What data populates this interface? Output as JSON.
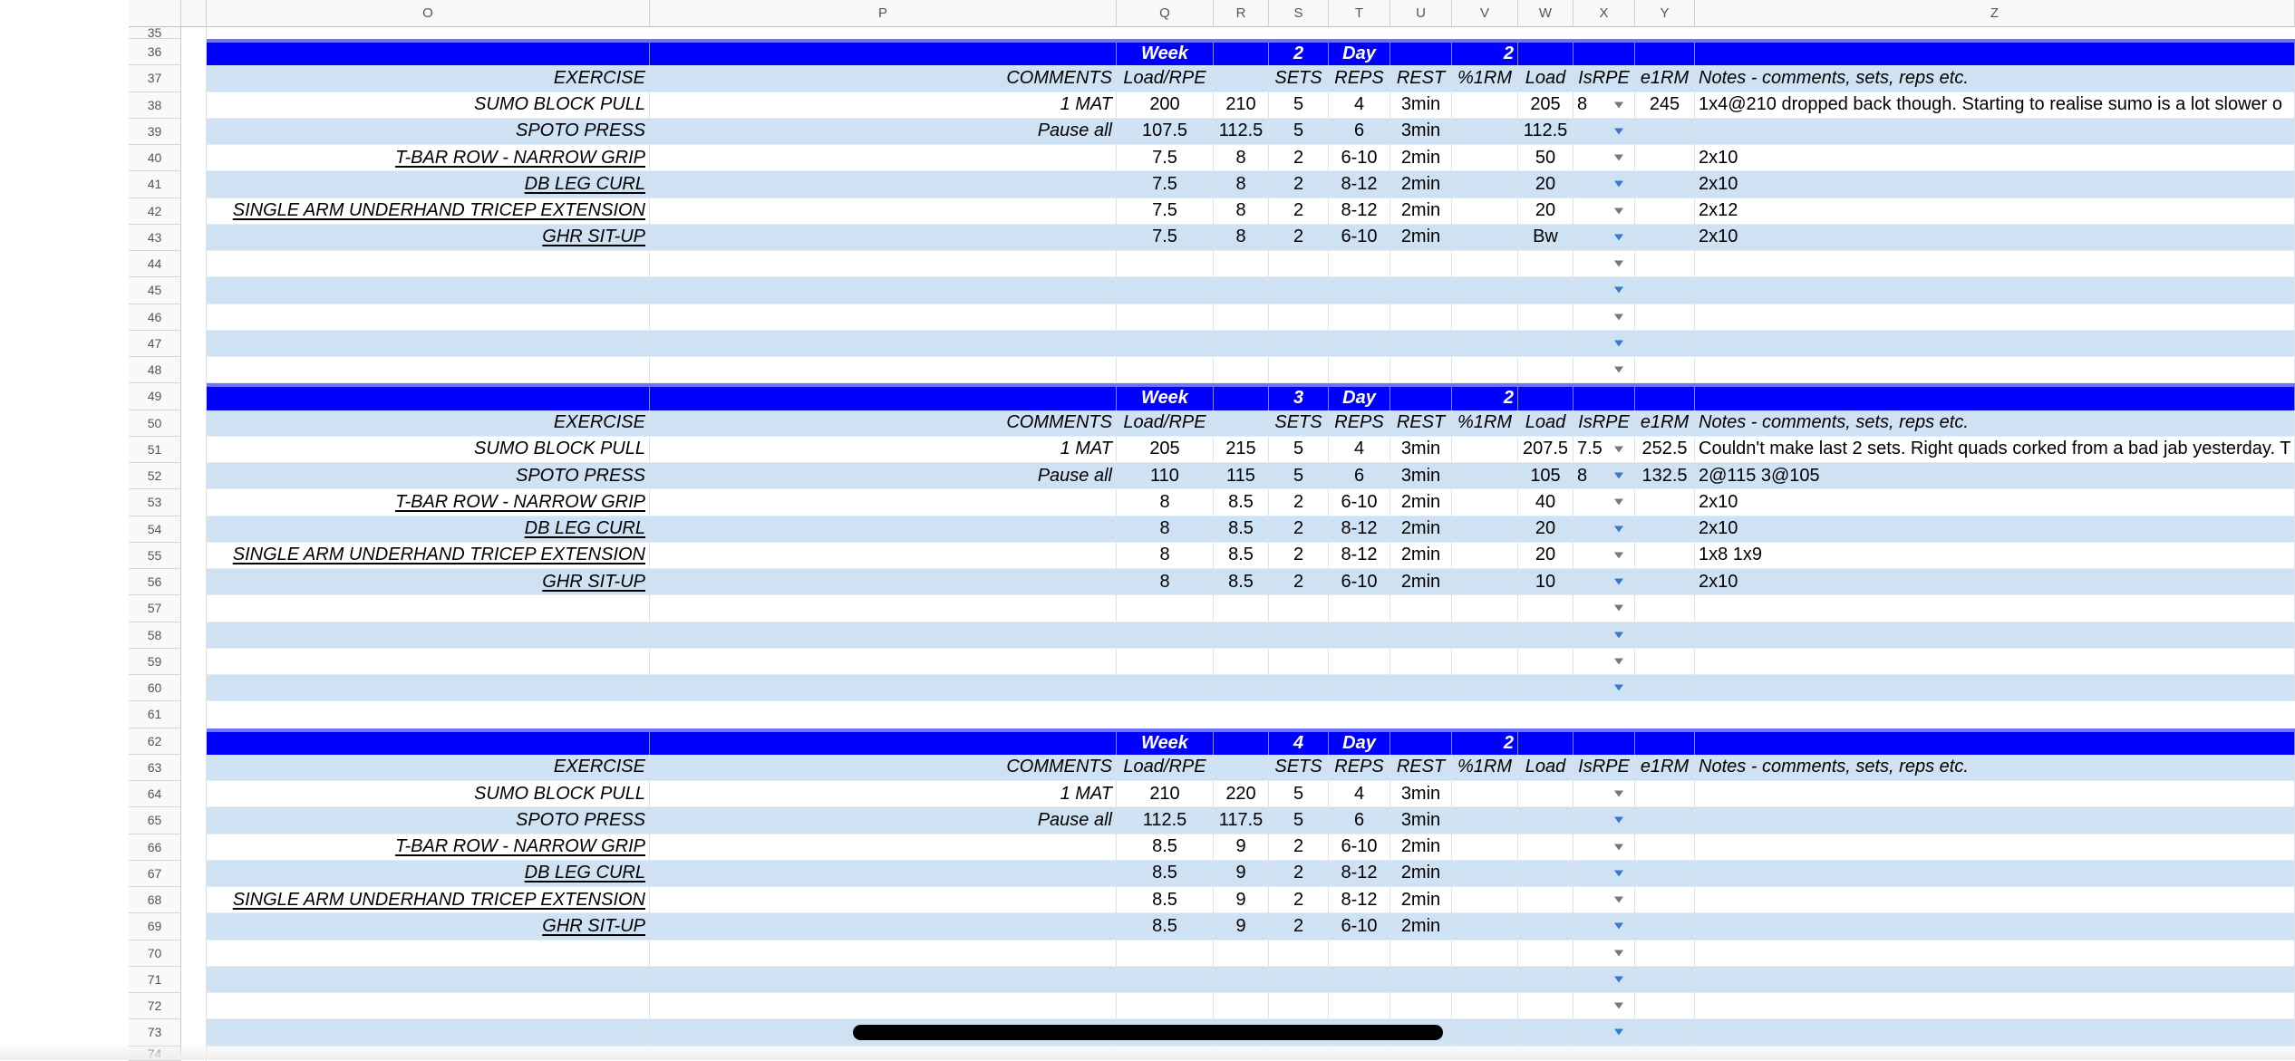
{
  "columns": [
    "O",
    "P",
    "Q",
    "R",
    "S",
    "T",
    "U",
    "V",
    "W",
    "X",
    "Y",
    "Z"
  ],
  "partial_rows": {
    "top": "35",
    "bottom": "74"
  },
  "labels": {
    "week": "Week",
    "day": "Day",
    "header": {
      "exercise": "EXERCISE",
      "comments": "COMMENTS",
      "load_rpe": "Load/RPE",
      "sets": "SETS",
      "reps": "REPS",
      "rest": "REST",
      "pct1rm": "%1RM",
      "load": "Load",
      "isrpe": "IsRPE",
      "e1rm": "e1RM",
      "notes": "Notes - comments, sets, reps etc."
    }
  },
  "colors": {
    "week_header": "#0000ff",
    "band": "#cfe2f3",
    "dropdown_band": "#3a78c9",
    "dropdown_plain": "#777777"
  },
  "blocks": [
    {
      "week_row": "36",
      "header_row": "37",
      "week": "2",
      "day": "2",
      "rows": [
        {
          "num": "38",
          "exercise": "SUMO BLOCK PULL",
          "link": false,
          "comments": "1 MAT",
          "q": "200",
          "r": "210",
          "sets": "5",
          "reps": "4",
          "rest": "3min",
          "pct": "",
          "load": "205",
          "isrpe": "8",
          "e1rm": "245",
          "notes": "1x4@210 dropped back though. Starting to realise sumo is a lot slower o"
        },
        {
          "num": "39",
          "exercise": "SPOTO PRESS",
          "link": false,
          "comments": "Pause all",
          "q": "107.5",
          "r": "112.5",
          "sets": "5",
          "reps": "6",
          "rest": "3min",
          "pct": "",
          "load": "112.5",
          "isrpe": "",
          "e1rm": "",
          "notes": ""
        },
        {
          "num": "40",
          "exercise": "T-BAR ROW - NARROW GRIP",
          "link": true,
          "comments": "",
          "q": "7.5",
          "r": "8",
          "sets": "2",
          "reps": "6-10",
          "rest": "2min",
          "pct": "",
          "load": "50",
          "isrpe": "",
          "e1rm": "",
          "notes": "2x10"
        },
        {
          "num": "41",
          "exercise": "DB LEG CURL",
          "link": true,
          "comments": "",
          "q": "7.5",
          "r": "8",
          "sets": "2",
          "reps": "8-12",
          "rest": "2min",
          "pct": "",
          "load": "20",
          "isrpe": "",
          "e1rm": "",
          "notes": "2x10"
        },
        {
          "num": "42",
          "exercise": "SINGLE ARM UNDERHAND TRICEP EXTENSION",
          "link": true,
          "comments": "",
          "q": "7.5",
          "r": "8",
          "sets": "2",
          "reps": "8-12",
          "rest": "2min",
          "pct": "",
          "load": "20",
          "isrpe": "",
          "e1rm": "",
          "notes": "2x12"
        },
        {
          "num": "43",
          "exercise": "GHR SIT-UP",
          "link": true,
          "comments": "",
          "q": "7.5",
          "r": "8",
          "sets": "2",
          "reps": "6-10",
          "rest": "2min",
          "pct": "",
          "load": "Bw",
          "isrpe": "",
          "e1rm": "",
          "notes": "2x10"
        }
      ],
      "empty_rows": [
        "44",
        "45",
        "46",
        "47",
        "48"
      ]
    },
    {
      "week_row": "49",
      "header_row": "50",
      "week": "3",
      "day": "2",
      "rows": [
        {
          "num": "51",
          "exercise": "SUMO BLOCK PULL",
          "link": false,
          "comments": "1 MAT",
          "q": "205",
          "r": "215",
          "sets": "5",
          "reps": "4",
          "rest": "3min",
          "pct": "",
          "load": "207.5",
          "isrpe": "7.5",
          "e1rm": "252.5",
          "notes": "Couldn't make last 2 sets. Right quads corked from a bad jab yesterday. T"
        },
        {
          "num": "52",
          "exercise": "SPOTO PRESS",
          "link": false,
          "comments": "Pause all",
          "q": "110",
          "r": "115",
          "sets": "5",
          "reps": "6",
          "rest": "3min",
          "pct": "",
          "load": "105",
          "isrpe": "8",
          "e1rm": "132.5",
          "notes": "2@115 3@105"
        },
        {
          "num": "53",
          "exercise": "T-BAR ROW - NARROW GRIP",
          "link": true,
          "comments": "",
          "q": "8",
          "r": "8.5",
          "sets": "2",
          "reps": "6-10",
          "rest": "2min",
          "pct": "",
          "load": "40",
          "isrpe": "",
          "e1rm": "",
          "notes": "2x10"
        },
        {
          "num": "54",
          "exercise": "DB LEG CURL",
          "link": true,
          "comments": "",
          "q": "8",
          "r": "8.5",
          "sets": "2",
          "reps": "8-12",
          "rest": "2min",
          "pct": "",
          "load": "20",
          "isrpe": "",
          "e1rm": "",
          "notes": "2x10"
        },
        {
          "num": "55",
          "exercise": "SINGLE ARM UNDERHAND TRICEP EXTENSION",
          "link": true,
          "comments": "",
          "q": "8",
          "r": "8.5",
          "sets": "2",
          "reps": "8-12",
          "rest": "2min",
          "pct": "",
          "load": "20",
          "isrpe": "",
          "e1rm": "",
          "notes": "1x8 1x9"
        },
        {
          "num": "56",
          "exercise": "GHR SIT-UP",
          "link": true,
          "comments": "",
          "q": "8",
          "r": "8.5",
          "sets": "2",
          "reps": "6-10",
          "rest": "2min",
          "pct": "",
          "load": "10",
          "isrpe": "",
          "e1rm": "",
          "notes": "2x10"
        }
      ],
      "empty_rows": [
        "57",
        "58",
        "59",
        "60"
      ],
      "spacer_rows": [
        "61"
      ]
    },
    {
      "week_row": "62",
      "header_row": "63",
      "week": "4",
      "day": "2",
      "rows": [
        {
          "num": "64",
          "exercise": "SUMO BLOCK PULL",
          "link": false,
          "comments": "1 MAT",
          "q": "210",
          "r": "220",
          "sets": "5",
          "reps": "4",
          "rest": "3min",
          "pct": "",
          "load": "",
          "isrpe": "",
          "e1rm": "",
          "notes": ""
        },
        {
          "num": "65",
          "exercise": "SPOTO PRESS",
          "link": false,
          "comments": "Pause all",
          "q": "112.5",
          "r": "117.5",
          "sets": "5",
          "reps": "6",
          "rest": "3min",
          "pct": "",
          "load": "",
          "isrpe": "",
          "e1rm": "",
          "notes": ""
        },
        {
          "num": "66",
          "exercise": "T-BAR ROW - NARROW GRIP",
          "link": true,
          "comments": "",
          "q": "8.5",
          "r": "9",
          "sets": "2",
          "reps": "6-10",
          "rest": "2min",
          "pct": "",
          "load": "",
          "isrpe": "",
          "e1rm": "",
          "notes": ""
        },
        {
          "num": "67",
          "exercise": "DB LEG CURL",
          "link": true,
          "comments": "",
          "q": "8.5",
          "r": "9",
          "sets": "2",
          "reps": "8-12",
          "rest": "2min",
          "pct": "",
          "load": "",
          "isrpe": "",
          "e1rm": "",
          "notes": ""
        },
        {
          "num": "68",
          "exercise": "SINGLE ARM UNDERHAND TRICEP EXTENSION",
          "link": true,
          "comments": "",
          "q": "8.5",
          "r": "9",
          "sets": "2",
          "reps": "8-12",
          "rest": "2min",
          "pct": "",
          "load": "",
          "isrpe": "",
          "e1rm": "",
          "notes": ""
        },
        {
          "num": "69",
          "exercise": "GHR SIT-UP",
          "link": true,
          "comments": "",
          "q": "8.5",
          "r": "9",
          "sets": "2",
          "reps": "6-10",
          "rest": "2min",
          "pct": "",
          "load": "",
          "isrpe": "",
          "e1rm": "",
          "notes": ""
        }
      ],
      "empty_rows": [
        "70",
        "71",
        "72",
        "73"
      ]
    }
  ]
}
